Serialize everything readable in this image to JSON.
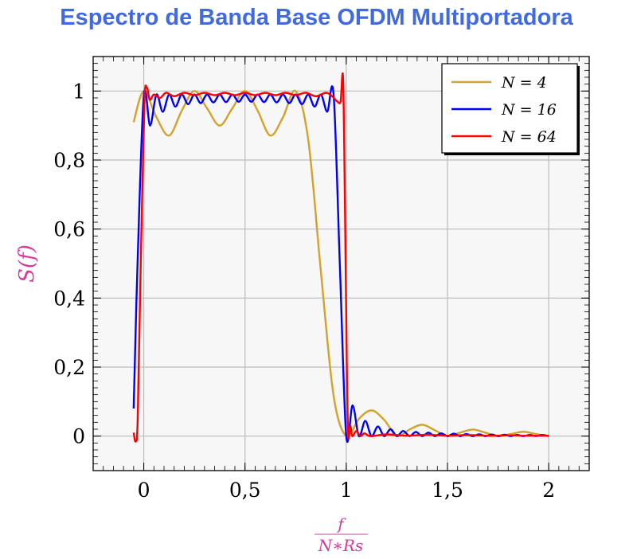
{
  "chart_data": {
    "type": "line",
    "title": "Espectro de Banda Base OFDM Multiportadora",
    "xlabel": {
      "numerator": "f",
      "denominator": "N∗Rs"
    },
    "ylabel": "S(f)",
    "xlim": [
      -0.25,
      2.2
    ],
    "ylim": [
      -0.1,
      1.1
    ],
    "xticks": [
      0,
      0.5,
      1,
      1.5,
      2
    ],
    "xtick_labels": [
      "0",
      "0,5",
      "1",
      "1,5",
      "2"
    ],
    "yticks": [
      0,
      0.2,
      0.4,
      0.6,
      0.8,
      1
    ],
    "ytick_labels": [
      "0",
      "0,2",
      "0,4",
      "0,6",
      "0,8",
      "1"
    ],
    "grid": true,
    "legend_position": "top-right",
    "series": [
      {
        "name": "N = 4",
        "color": "#d4a12a",
        "points": [
          [
            -0.05,
            0.91
          ],
          [
            0,
            1
          ],
          [
            0.0625,
            0.924
          ],
          [
            0.125,
            0.871
          ],
          [
            0.1875,
            0.943
          ],
          [
            0.25,
            1
          ],
          [
            0.3125,
            0.95
          ],
          [
            0.375,
            0.9
          ],
          [
            0.4375,
            0.95
          ],
          [
            0.5,
            1
          ],
          [
            0.5625,
            0.943
          ],
          [
            0.625,
            0.871
          ],
          [
            0.6875,
            0.924
          ],
          [
            0.75,
            1
          ],
          [
            0.8125,
            0.858
          ],
          [
            0.875,
            0.475
          ],
          [
            0.9375,
            0.117
          ],
          [
            1,
            0
          ],
          [
            1.0625,
            0.05
          ],
          [
            1.125,
            0.0745
          ],
          [
            1.1875,
            0.047
          ],
          [
            1.25,
            0
          ],
          [
            1.3125,
            0.019
          ],
          [
            1.375,
            0.033
          ],
          [
            1.4375,
            0.017
          ],
          [
            1.5,
            0
          ],
          [
            1.5625,
            0.01
          ],
          [
            1.625,
            0.019
          ],
          [
            1.6875,
            0.01
          ],
          [
            1.75,
            0
          ],
          [
            1.8125,
            0.006
          ],
          [
            1.875,
            0.0125
          ],
          [
            1.9375,
            0.006
          ],
          [
            2,
            0
          ]
        ]
      },
      {
        "name": "N = 16",
        "color": "#0000ff",
        "points": [
          [
            -0.05,
            0.08
          ],
          [
            -0.03125,
            0.49
          ],
          [
            0,
            0.985
          ],
          [
            0.03125,
            0.9
          ],
          [
            0.0625,
            0.99
          ],
          [
            0.09375,
            0.94
          ],
          [
            0.125,
            0.99
          ],
          [
            0.15625,
            0.955
          ],
          [
            0.1875,
            0.99
          ],
          [
            0.21875,
            0.962
          ],
          [
            0.25,
            0.99
          ],
          [
            0.28125,
            0.965
          ],
          [
            0.3125,
            0.99
          ],
          [
            0.34375,
            0.967
          ],
          [
            0.375,
            0.99
          ],
          [
            0.40625,
            0.968
          ],
          [
            0.4375,
            0.99
          ],
          [
            0.46875,
            0.969
          ],
          [
            0.5,
            0.99
          ],
          [
            0.53125,
            0.969
          ],
          [
            0.5625,
            0.99
          ],
          [
            0.59375,
            0.968
          ],
          [
            0.625,
            0.99
          ],
          [
            0.65625,
            0.967
          ],
          [
            0.6875,
            0.99
          ],
          [
            0.71875,
            0.965
          ],
          [
            0.75,
            0.99
          ],
          [
            0.78125,
            0.962
          ],
          [
            0.8125,
            0.99
          ],
          [
            0.84375,
            0.955
          ],
          [
            0.875,
            0.99
          ],
          [
            0.90625,
            0.94
          ],
          [
            0.9375,
            0.99
          ],
          [
            0.96875,
            0.49
          ],
          [
            1,
            0
          ],
          [
            1.03125,
            0.089
          ],
          [
            1.0625,
            0
          ],
          [
            1.09375,
            0.044
          ],
          [
            1.125,
            0
          ],
          [
            1.15625,
            0.028
          ],
          [
            1.1875,
            0
          ],
          [
            1.21875,
            0.02
          ],
          [
            1.25,
            0
          ],
          [
            1.28125,
            0.015
          ],
          [
            1.3125,
            0
          ],
          [
            1.34375,
            0.012
          ],
          [
            1.375,
            0
          ],
          [
            1.40625,
            0.01
          ],
          [
            1.4375,
            0
          ],
          [
            1.46875,
            0.008
          ],
          [
            1.5,
            0
          ],
          [
            1.53125,
            0.007
          ],
          [
            1.5625,
            0
          ],
          [
            1.59375,
            0.006
          ],
          [
            1.625,
            0
          ],
          [
            1.65625,
            0.005
          ],
          [
            1.6875,
            0
          ],
          [
            1.71875,
            0.0045
          ],
          [
            1.75,
            0
          ],
          [
            1.78125,
            0.004
          ],
          [
            1.8125,
            0
          ],
          [
            1.84375,
            0.0035
          ],
          [
            1.875,
            0
          ],
          [
            1.90625,
            0.003
          ],
          [
            1.9375,
            0
          ],
          [
            1.96875,
            0.003
          ],
          [
            2,
            0
          ]
        ]
      },
      {
        "name": "N = 64",
        "color": "#ff0000",
        "points": [
          [
            -0.05,
            0.01
          ],
          [
            -0.04,
            -0.015
          ],
          [
            -0.03,
            0.05
          ],
          [
            -0.015,
            0.5
          ],
          [
            0.003,
            0.96
          ],
          [
            0.015,
            1.01
          ],
          [
            0.03,
            0.975
          ],
          [
            0.05,
            0.99
          ],
          [
            0.08,
            0.98
          ],
          [
            0.11,
            0.995
          ],
          [
            0.15,
            0.985
          ],
          [
            0.2,
            0.995
          ],
          [
            0.25,
            0.988
          ],
          [
            0.3,
            0.995
          ],
          [
            0.35,
            0.988
          ],
          [
            0.4,
            0.995
          ],
          [
            0.45,
            0.988
          ],
          [
            0.5,
            0.995
          ],
          [
            0.55,
            0.988
          ],
          [
            0.6,
            0.995
          ],
          [
            0.65,
            0.988
          ],
          [
            0.7,
            0.995
          ],
          [
            0.75,
            0.988
          ],
          [
            0.8,
            0.995
          ],
          [
            0.85,
            0.985
          ],
          [
            0.9,
            0.995
          ],
          [
            0.93,
            0.985
          ],
          [
            0.955,
            0.97
          ],
          [
            0.972,
            0.97
          ],
          [
            0.984,
            1.04
          ],
          [
            0.993,
            0.7
          ],
          [
            1.003,
            0.2
          ],
          [
            1.01,
            0.0
          ],
          [
            1.02,
            0.03
          ],
          [
            1.03,
            0.0
          ],
          [
            1.05,
            0.015
          ],
          [
            1.07,
            0.0
          ],
          [
            1.09,
            0.008
          ],
          [
            1.12,
            0.0
          ],
          [
            1.2,
            0.005
          ],
          [
            1.3,
            0.001
          ],
          [
            1.4,
            0.004
          ],
          [
            1.5,
            0.001
          ],
          [
            1.6,
            0.003
          ],
          [
            1.7,
            0.001
          ],
          [
            1.8,
            0.002
          ],
          [
            1.9,
            0.001
          ],
          [
            2,
            0.001
          ]
        ]
      }
    ]
  }
}
